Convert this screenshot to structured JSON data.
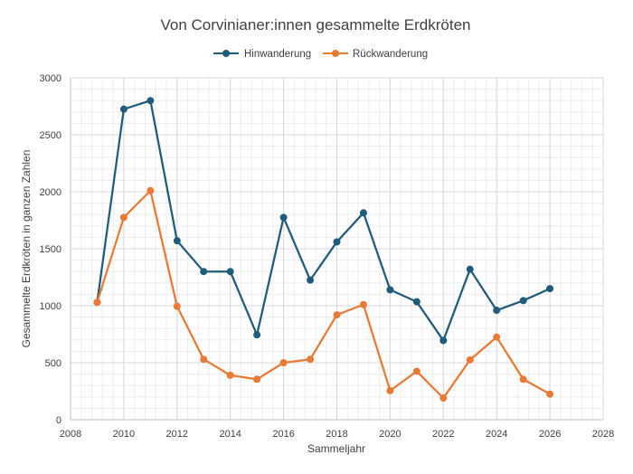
{
  "chart_data": {
    "type": "line",
    "title": "Von Corvinianer:innen gesammelte Erdkröten",
    "xlabel": "Sammeljahr",
    "ylabel": "Gesammelte Erdkröten in ganzen Zahlen",
    "xlim": [
      2008,
      2028
    ],
    "ylim": [
      0,
      3000
    ],
    "xticks": [
      2008,
      2010,
      2012,
      2014,
      2016,
      2018,
      2020,
      2022,
      2024,
      2026,
      2028
    ],
    "yticks": [
      0,
      500,
      1000,
      1500,
      2000,
      2500,
      3000
    ],
    "grid": true,
    "legend_position": "top",
    "x": [
      2009,
      2010,
      2011,
      2012,
      2013,
      2014,
      2015,
      2016,
      2017,
      2018,
      2019,
      2020,
      2021,
      2022,
      2023,
      2024,
      2025,
      2026
    ],
    "series": [
      {
        "name": "Hinwanderung",
        "color": "#1f5b7a",
        "values": [
          1030,
          2725,
          2800,
          1570,
          1300,
          1300,
          745,
          1775,
          1225,
          1560,
          1815,
          1140,
          1035,
          695,
          1320,
          960,
          1045,
          1150
        ]
      },
      {
        "name": "Rückwanderung",
        "color": "#e97a35",
        "values": [
          1030,
          1775,
          2010,
          995,
          530,
          390,
          355,
          500,
          530,
          920,
          1010,
          255,
          425,
          190,
          525,
          725,
          355,
          225
        ]
      }
    ]
  }
}
